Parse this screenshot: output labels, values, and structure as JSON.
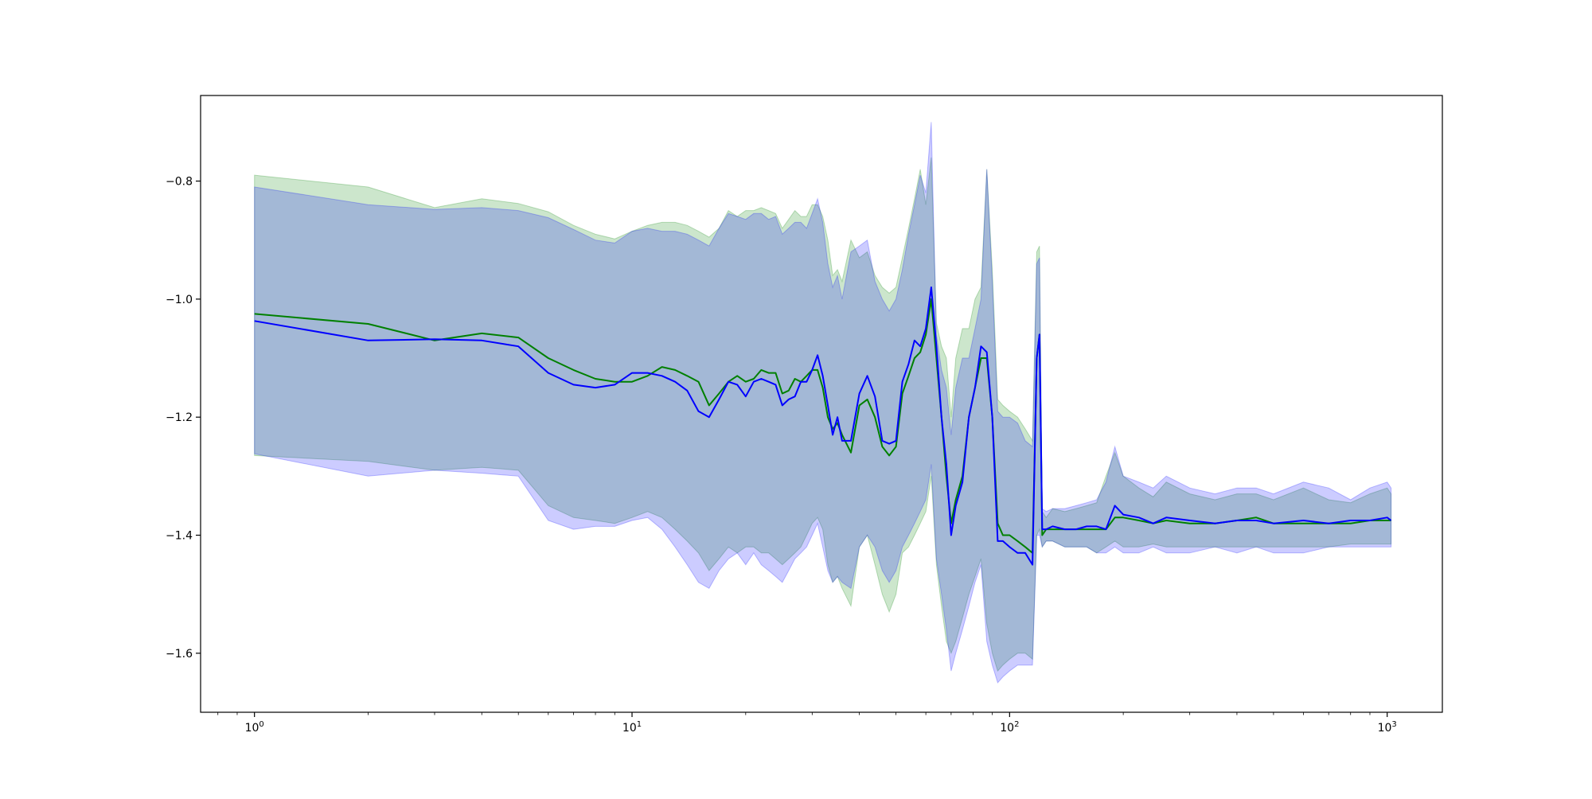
{
  "chart_data": {
    "type": "line",
    "title": "",
    "xlabel": "",
    "ylabel": "",
    "x_scale": "log",
    "xlim": [
      0.72,
      1400
    ],
    "ylim": [
      -1.7,
      -0.655
    ],
    "x_ticks": [
      {
        "value": 1,
        "base": "10",
        "exp": "0"
      },
      {
        "value": 10,
        "base": "10",
        "exp": "1"
      },
      {
        "value": 100,
        "base": "10",
        "exp": "2"
      },
      {
        "value": 1000,
        "base": "10",
        "exp": "3"
      }
    ],
    "y_ticks": [
      {
        "value": -0.8,
        "label": "−0.8"
      },
      {
        "value": -1.0,
        "label": "−1.0"
      },
      {
        "value": -1.2,
        "label": "−1.2"
      },
      {
        "value": -1.4,
        "label": "−1.4"
      },
      {
        "value": -1.6,
        "label": "−1.6"
      }
    ],
    "grid": false,
    "legend": false,
    "series": [
      {
        "color": "#008000",
        "band_fill": "#008000",
        "band_alpha": 0.2,
        "x": [
          1,
          2,
          3,
          4,
          5,
          6,
          7,
          8,
          9,
          10,
          11,
          12,
          13,
          14,
          15,
          16,
          17,
          18,
          19,
          20,
          21,
          22,
          23,
          24,
          25,
          26,
          27,
          28,
          29,
          30,
          31,
          32,
          33,
          34,
          35,
          36,
          38,
          40,
          42,
          44,
          46,
          48,
          50,
          52,
          54,
          56,
          58,
          60,
          62,
          64,
          66,
          68,
          70,
          72,
          75,
          78,
          81,
          84,
          87,
          90,
          93,
          96,
          100,
          105,
          110,
          115,
          118,
          120,
          122,
          125,
          130,
          140,
          150,
          160,
          170,
          180,
          190,
          200,
          220,
          240,
          260,
          300,
          350,
          400,
          450,
          500,
          600,
          700,
          800,
          900,
          1000,
          1024
        ],
        "mean": [
          -1.025,
          -1.042,
          -1.07,
          -1.058,
          -1.065,
          -1.1,
          -1.12,
          -1.135,
          -1.14,
          -1.14,
          -1.13,
          -1.115,
          -1.12,
          -1.13,
          -1.14,
          -1.18,
          -1.16,
          -1.14,
          -1.13,
          -1.14,
          -1.135,
          -1.12,
          -1.125,
          -1.125,
          -1.16,
          -1.155,
          -1.135,
          -1.14,
          -1.13,
          -1.12,
          -1.12,
          -1.15,
          -1.2,
          -1.22,
          -1.21,
          -1.23,
          -1.26,
          -1.18,
          -1.17,
          -1.2,
          -1.25,
          -1.265,
          -1.25,
          -1.16,
          -1.13,
          -1.1,
          -1.09,
          -1.06,
          -1.0,
          -1.1,
          -1.2,
          -1.3,
          -1.38,
          -1.34,
          -1.3,
          -1.2,
          -1.15,
          -1.1,
          -1.1,
          -1.2,
          -1.38,
          -1.4,
          -1.4,
          -1.41,
          -1.42,
          -1.43,
          -1.1,
          -1.06,
          -1.4,
          -1.39,
          -1.39,
          -1.39,
          -1.39,
          -1.39,
          -1.39,
          -1.39,
          -1.37,
          -1.37,
          -1.375,
          -1.38,
          -1.375,
          -1.38,
          -1.38,
          -1.375,
          -1.37,
          -1.38,
          -1.38,
          -1.38,
          -1.38,
          -1.375,
          -1.375,
          -1.375
        ],
        "upper": [
          -0.79,
          -0.81,
          -0.845,
          -0.83,
          -0.838,
          -0.852,
          -0.875,
          -0.89,
          -0.898,
          -0.885,
          -0.875,
          -0.87,
          -0.87,
          -0.875,
          -0.885,
          -0.895,
          -0.88,
          -0.85,
          -0.86,
          -0.85,
          -0.85,
          -0.845,
          -0.85,
          -0.855,
          -0.88,
          -0.865,
          -0.85,
          -0.86,
          -0.86,
          -0.84,
          -0.84,
          -0.86,
          -0.9,
          -0.96,
          -0.95,
          -0.97,
          -0.9,
          -0.93,
          -0.92,
          -0.96,
          -0.98,
          -0.99,
          -0.98,
          -0.93,
          -0.88,
          -0.83,
          -0.78,
          -0.84,
          -0.76,
          -1.04,
          -1.08,
          -1.1,
          -1.2,
          -1.1,
          -1.05,
          -1.05,
          -1.0,
          -0.98,
          -0.78,
          -0.95,
          -1.17,
          -1.18,
          -1.19,
          -1.2,
          -1.22,
          -1.24,
          -0.92,
          -0.91,
          -1.36,
          -1.37,
          -1.355,
          -1.36,
          -1.355,
          -1.35,
          -1.345,
          -1.3,
          -1.26,
          -1.3,
          -1.32,
          -1.335,
          -1.31,
          -1.33,
          -1.34,
          -1.33,
          -1.33,
          -1.34,
          -1.32,
          -1.34,
          -1.345,
          -1.33,
          -1.32,
          -1.33
        ],
        "lower": [
          -1.265,
          -1.275,
          -1.29,
          -1.285,
          -1.29,
          -1.35,
          -1.37,
          -1.375,
          -1.38,
          -1.37,
          -1.36,
          -1.37,
          -1.39,
          -1.41,
          -1.43,
          -1.46,
          -1.44,
          -1.42,
          -1.43,
          -1.42,
          -1.42,
          -1.43,
          -1.43,
          -1.44,
          -1.45,
          -1.44,
          -1.43,
          -1.42,
          -1.4,
          -1.38,
          -1.37,
          -1.39,
          -1.45,
          -1.48,
          -1.47,
          -1.49,
          -1.52,
          -1.42,
          -1.4,
          -1.45,
          -1.5,
          -1.53,
          -1.5,
          -1.43,
          -1.42,
          -1.4,
          -1.38,
          -1.36,
          -1.3,
          -1.45,
          -1.52,
          -1.58,
          -1.6,
          -1.58,
          -1.54,
          -1.5,
          -1.47,
          -1.44,
          -1.55,
          -1.6,
          -1.63,
          -1.62,
          -1.61,
          -1.6,
          -1.6,
          -1.61,
          -1.4,
          -1.39,
          -1.42,
          -1.41,
          -1.41,
          -1.42,
          -1.42,
          -1.42,
          -1.43,
          -1.42,
          -1.41,
          -1.42,
          -1.42,
          -1.415,
          -1.42,
          -1.42,
          -1.42,
          -1.42,
          -1.42,
          -1.42,
          -1.42,
          -1.42,
          -1.415,
          -1.415,
          -1.415,
          -1.415
        ]
      },
      {
        "color": "#0000ff",
        "band_fill": "#0000ff",
        "band_alpha": 0.2,
        "x": [
          1,
          2,
          3,
          4,
          5,
          6,
          7,
          8,
          9,
          10,
          11,
          12,
          13,
          14,
          15,
          16,
          17,
          18,
          19,
          20,
          21,
          22,
          23,
          24,
          25,
          26,
          27,
          28,
          29,
          30,
          31,
          32,
          33,
          34,
          35,
          36,
          38,
          40,
          42,
          44,
          46,
          48,
          50,
          52,
          54,
          56,
          58,
          60,
          62,
          64,
          66,
          68,
          70,
          72,
          75,
          78,
          81,
          84,
          87,
          90,
          93,
          96,
          100,
          105,
          110,
          115,
          118,
          120,
          122,
          125,
          130,
          140,
          150,
          160,
          170,
          180,
          190,
          200,
          220,
          240,
          260,
          300,
          350,
          400,
          450,
          500,
          600,
          700,
          800,
          900,
          1000,
          1024
        ],
        "mean": [
          -1.037,
          -1.07,
          -1.068,
          -1.07,
          -1.08,
          -1.125,
          -1.145,
          -1.15,
          -1.145,
          -1.125,
          -1.125,
          -1.13,
          -1.14,
          -1.155,
          -1.19,
          -1.2,
          -1.17,
          -1.14,
          -1.145,
          -1.165,
          -1.14,
          -1.135,
          -1.14,
          -1.145,
          -1.18,
          -1.17,
          -1.165,
          -1.14,
          -1.14,
          -1.12,
          -1.095,
          -1.13,
          -1.18,
          -1.23,
          -1.2,
          -1.24,
          -1.24,
          -1.16,
          -1.13,
          -1.165,
          -1.24,
          -1.245,
          -1.24,
          -1.14,
          -1.11,
          -1.07,
          -1.08,
          -1.05,
          -0.98,
          -1.08,
          -1.2,
          -1.28,
          -1.4,
          -1.35,
          -1.31,
          -1.2,
          -1.15,
          -1.08,
          -1.09,
          -1.2,
          -1.41,
          -1.41,
          -1.42,
          -1.43,
          -1.43,
          -1.45,
          -1.1,
          -1.06,
          -1.39,
          -1.39,
          -1.385,
          -1.39,
          -1.39,
          -1.385,
          -1.385,
          -1.39,
          -1.35,
          -1.365,
          -1.37,
          -1.38,
          -1.37,
          -1.375,
          -1.38,
          -1.375,
          -1.375,
          -1.38,
          -1.375,
          -1.38,
          -1.375,
          -1.375,
          -1.37,
          -1.375
        ],
        "upper": [
          -0.81,
          -0.84,
          -0.848,
          -0.845,
          -0.85,
          -0.862,
          -0.882,
          -0.9,
          -0.905,
          -0.885,
          -0.88,
          -0.885,
          -0.885,
          -0.89,
          -0.9,
          -0.91,
          -0.88,
          -0.855,
          -0.86,
          -0.865,
          -0.855,
          -0.855,
          -0.865,
          -0.86,
          -0.89,
          -0.88,
          -0.87,
          -0.87,
          -0.88,
          -0.855,
          -0.83,
          -0.87,
          -0.94,
          -0.98,
          -0.96,
          -1.0,
          -0.92,
          -0.91,
          -0.9,
          -0.97,
          -1.0,
          -1.02,
          -1.0,
          -0.95,
          -0.89,
          -0.84,
          -0.79,
          -0.82,
          -0.7,
          -1.06,
          -1.12,
          -1.15,
          -1.23,
          -1.15,
          -1.1,
          -1.1,
          -1.05,
          -1.0,
          -0.78,
          -0.97,
          -1.19,
          -1.2,
          -1.2,
          -1.21,
          -1.24,
          -1.25,
          -0.94,
          -0.93,
          -1.355,
          -1.36,
          -1.355,
          -1.355,
          -1.35,
          -1.345,
          -1.34,
          -1.31,
          -1.25,
          -1.3,
          -1.31,
          -1.32,
          -1.3,
          -1.32,
          -1.33,
          -1.32,
          -1.32,
          -1.33,
          -1.31,
          -1.32,
          -1.34,
          -1.32,
          -1.31,
          -1.32
        ],
        "lower": [
          -1.262,
          -1.3,
          -1.29,
          -1.295,
          -1.3,
          -1.375,
          -1.39,
          -1.385,
          -1.385,
          -1.375,
          -1.37,
          -1.39,
          -1.42,
          -1.45,
          -1.48,
          -1.49,
          -1.46,
          -1.44,
          -1.43,
          -1.45,
          -1.43,
          -1.45,
          -1.46,
          -1.47,
          -1.48,
          -1.46,
          -1.44,
          -1.43,
          -1.42,
          -1.4,
          -1.38,
          -1.42,
          -1.46,
          -1.48,
          -1.47,
          -1.48,
          -1.49,
          -1.42,
          -1.4,
          -1.42,
          -1.46,
          -1.48,
          -1.46,
          -1.42,
          -1.4,
          -1.38,
          -1.36,
          -1.34,
          -1.28,
          -1.44,
          -1.5,
          -1.56,
          -1.63,
          -1.6,
          -1.56,
          -1.52,
          -1.48,
          -1.45,
          -1.58,
          -1.62,
          -1.65,
          -1.64,
          -1.63,
          -1.62,
          -1.62,
          -1.62,
          -1.4,
          -1.4,
          -1.42,
          -1.41,
          -1.41,
          -1.42,
          -1.42,
          -1.42,
          -1.43,
          -1.43,
          -1.42,
          -1.43,
          -1.43,
          -1.42,
          -1.43,
          -1.43,
          -1.42,
          -1.43,
          -1.42,
          -1.43,
          -1.43,
          -1.42,
          -1.42,
          -1.42,
          -1.42,
          -1.42
        ]
      }
    ]
  }
}
